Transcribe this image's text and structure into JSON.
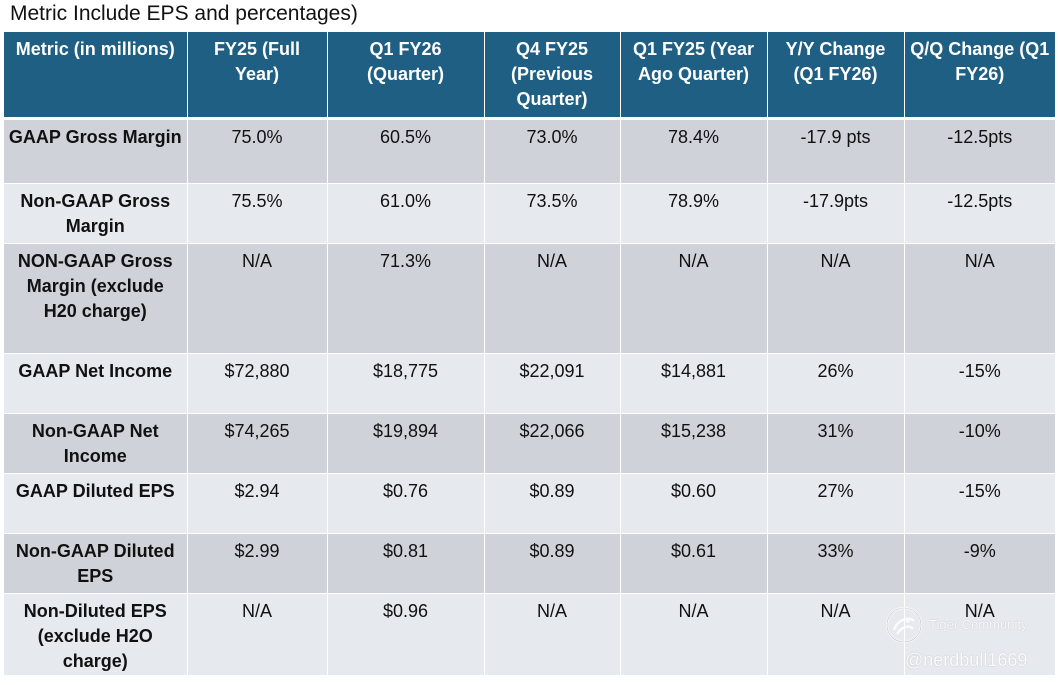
{
  "title": "Metric Include EPS and percentages)",
  "table": {
    "headers": [
      "Metric (in millions)",
      "FY25 (Full Year)",
      "Q1 FY26 (Quarter)",
      "Q4 FY25 (Previous Quarter)",
      "Q1 FY25 (Year Ago Quarter)",
      "Y/Y Change (Q1 FY26)",
      "Q/Q Change (Q1 FY26)"
    ],
    "rows": [
      [
        "GAAP Gross Margin",
        "75.0%",
        "60.5%",
        "73.0%",
        "78.4%",
        "-17.9 pts",
        "-12.5pts"
      ],
      [
        "Non-GAAP Gross Margin",
        "75.5%",
        "61.0%",
        "73.5%",
        "78.9%",
        "-17.9pts",
        "-12.5pts"
      ],
      [
        "NON-GAAP Gross Margin (exclude H20 charge)",
        "N/A",
        "71.3%",
        "N/A",
        "N/A",
        "N/A",
        "N/A"
      ],
      [
        "GAAP Net Income",
        "$72,880",
        "$18,775",
        "$22,091",
        "$14,881",
        "26%",
        "-15%"
      ],
      [
        "Non-GAAP Net Income",
        "$74,265",
        "$19,894",
        "$22,066",
        "$15,238",
        "31%",
        "-10%"
      ],
      [
        "GAAP Diluted EPS",
        "$2.94",
        "$0.76",
        "$0.89",
        "$0.60",
        "27%",
        "-15%"
      ],
      [
        "Non-GAAP Diluted EPS",
        "$2.99",
        "$0.81",
        "$0.89",
        "$0.61",
        "33%",
        "-9%"
      ],
      [
        "Non-Diluted EPS (exclude H2O charge)",
        "N/A",
        "$0.96",
        "N/A",
        "N/A",
        "N/A",
        "N/A"
      ]
    ]
  },
  "watermark": {
    "brand": "Tiger Community",
    "handle": "@nerdbull1669",
    "logo_icon": "tiger-community-logo-icon"
  },
  "colors": {
    "header_bg": "#1f5f84",
    "header_text": "#ffffff",
    "row_dark": "#cfd3d9",
    "row_light": "#e6e9ee"
  }
}
